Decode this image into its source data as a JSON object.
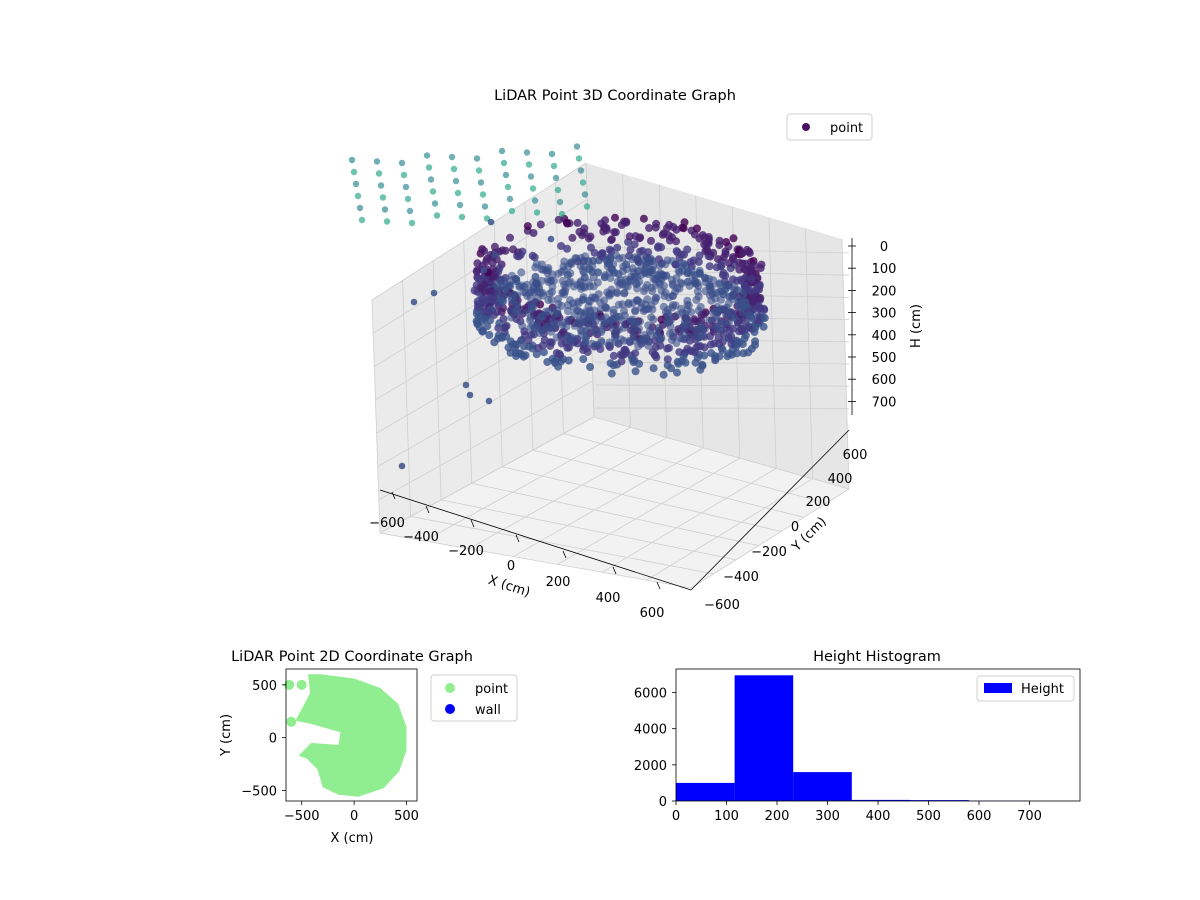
{
  "chart_data": [
    {
      "type": "scatter",
      "projection": "3d",
      "title": "LiDAR Point 3D Coordinate Graph",
      "xlabel": "X (cm)",
      "ylabel": "Y (cm)",
      "zlabel": "H (cm)",
      "xlim": [
        -700,
        650
      ],
      "ylim": [
        -650,
        650
      ],
      "zlim": [
        0,
        750
      ],
      "zaxis_inverted": true,
      "xticks": [
        "−600",
        "−400",
        "−200",
        "0",
        "200",
        "400",
        "600"
      ],
      "yticks": [
        "600",
        "400",
        "200",
        "0",
        "−200",
        "−400",
        "−600"
      ],
      "zticks": [
        "0",
        "100",
        "200",
        "300",
        "400",
        "500",
        "600",
        "700"
      ],
      "grid": true,
      "legend": {
        "position": "top-right",
        "entries": [
          "point"
        ]
      },
      "series": [
        {
          "name": "point",
          "colormap": "viridis",
          "description_points": "dense ring of points radius ~450 cm at heights 100-350 cm; sparse points near ceiling (H 0-50) and a few outliers down to ~700"
        }
      ]
    },
    {
      "type": "scatter",
      "title": "LiDAR Point 2D Coordinate Graph",
      "xlabel": "X (cm)",
      "ylabel": "Y (cm)",
      "xlim": [
        -650,
        600
      ],
      "ylim": [
        -600,
        650
      ],
      "xticks": [
        "−500",
        "0",
        "500"
      ],
      "yticks": [
        "500",
        "0",
        "−500"
      ],
      "legend": {
        "position": "outside-right",
        "entries": [
          "point",
          "wall"
        ]
      },
      "series": [
        {
          "name": "point",
          "color": "#90ee90"
        },
        {
          "name": "wall",
          "color": "#0000ff"
        }
      ]
    },
    {
      "type": "bar",
      "title": "Height Histogram",
      "xlim": [
        0,
        800
      ],
      "ylim": [
        0,
        7300
      ],
      "xticks": [
        "0",
        "100",
        "200",
        "300",
        "400",
        "500",
        "600",
        "700"
      ],
      "yticks": [
        "0",
        "2000",
        "4000",
        "6000"
      ],
      "legend": {
        "position": "top-right",
        "entries": [
          "Height"
        ]
      },
      "bin_edges": [
        0,
        116,
        232,
        348,
        464,
        580,
        696,
        790
      ],
      "values": [
        1000,
        6950,
        1600,
        60,
        50,
        10,
        5
      ],
      "series": [
        {
          "name": "Height",
          "color": "#0000ff"
        }
      ]
    }
  ]
}
